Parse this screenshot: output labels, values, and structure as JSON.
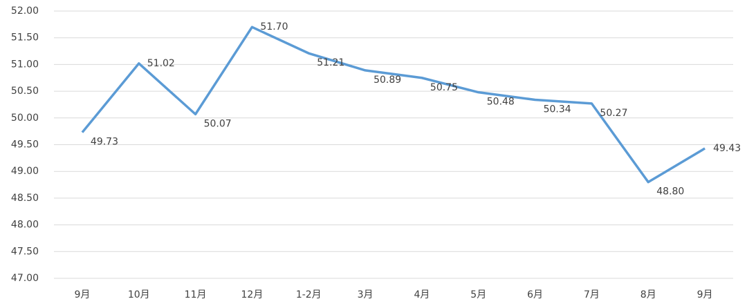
{
  "chart_data": {
    "type": "line",
    "categories": [
      "9月",
      "10月",
      "11月",
      "12月",
      "1-2月",
      "3月",
      "4月",
      "5月",
      "6月",
      "7月",
      "8月",
      "9月"
    ],
    "series": [
      {
        "color": "#5b9bd5",
        "values": [
          49.73,
          51.02,
          50.07,
          51.7,
          51.21,
          50.89,
          50.75,
          50.48,
          50.34,
          50.27,
          48.8,
          49.43
        ],
        "value_labels": [
          "49.73",
          "51.02",
          "50.07",
          "51.70",
          "51.21",
          "50.89",
          "50.75",
          "50.48",
          "50.34",
          "50.27",
          "48.80",
          "49.43"
        ]
      }
    ],
    "ylim": [
      47,
      52
    ],
    "yticks": [
      {
        "value": 47,
        "label": "47.00"
      },
      {
        "value": 47.5,
        "label": "47.50"
      },
      {
        "value": 48,
        "label": "48.00"
      },
      {
        "value": 48.5,
        "label": "48.50"
      },
      {
        "value": 49,
        "label": "49.00"
      },
      {
        "value": 49.5,
        "label": "49.50"
      },
      {
        "value": 50,
        "label": "50.00"
      },
      {
        "value": 50.5,
        "label": "50.50"
      },
      {
        "value": 51,
        "label": "51.00"
      },
      {
        "value": 51.5,
        "label": "51.50"
      },
      {
        "value": 52,
        "label": "52.00"
      }
    ],
    "grid": true
  }
}
